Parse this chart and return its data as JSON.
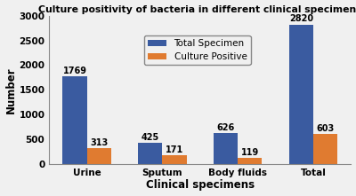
{
  "title": "Culture positivity of bacteria in different clinical specimens",
  "xlabel": "Clinical specimens",
  "ylabel": "Number",
  "categories": [
    "Urine",
    "Sputum",
    "Body fluids",
    "Total"
  ],
  "total_specimen": [
    1769,
    425,
    626,
    2820
  ],
  "culture_positive": [
    313,
    171,
    119,
    603
  ],
  "bar_color_total": "#3A5BA0",
  "bar_color_culture": "#E07B30",
  "ylim": [
    0,
    3000
  ],
  "yticks": [
    0,
    500,
    1000,
    1500,
    2000,
    2500,
    3000
  ],
  "legend_labels": [
    "Total Specimen",
    "Culture Positive"
  ],
  "bar_width": 0.32,
  "title_fontsize": 7.8,
  "axis_label_fontsize": 8.5,
  "tick_fontsize": 7.5,
  "legend_fontsize": 7.5,
  "annotation_fontsize": 7.0,
  "fig_bg": "#f0f0f0",
  "ax_bg": "#f0f0f0"
}
